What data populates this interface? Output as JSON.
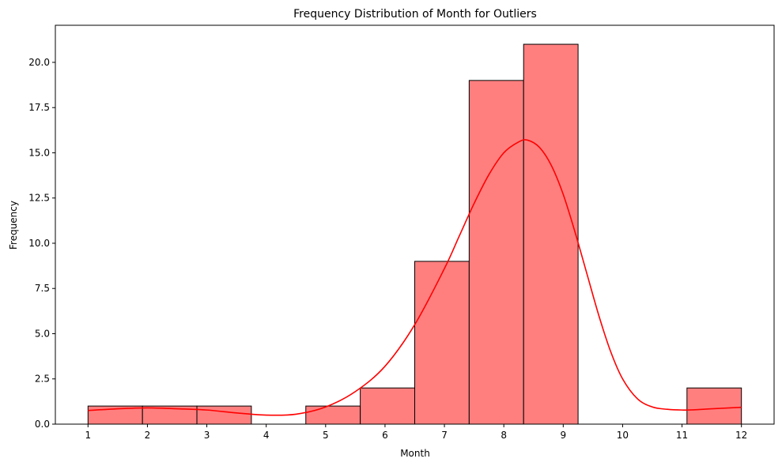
{
  "chart_data": {
    "type": "bar",
    "title": "Frequency Distribution of Month for Outliers",
    "xlabel": "Month",
    "ylabel": "Frequency",
    "xlim": [
      0.45,
      12.55
    ],
    "ylim": [
      0,
      22.05
    ],
    "bin_edges": [
      1.0,
      1.9167,
      2.8333,
      3.75,
      4.6667,
      5.5833,
      6.5,
      7.4167,
      8.3333,
      9.25,
      10.1667,
      11.0833,
      12.0
    ],
    "values": [
      1,
      1,
      1,
      0,
      1,
      2,
      9,
      19,
      21,
      0,
      0,
      2
    ],
    "kde": {
      "x": [
        1.0,
        1.5,
        2.0,
        2.5,
        3.0,
        3.5,
        4.0,
        4.5,
        5.0,
        5.5,
        6.0,
        6.5,
        7.0,
        7.25,
        7.5,
        7.75,
        8.0,
        8.25,
        8.4,
        8.6,
        8.8,
        9.0,
        9.2,
        9.4,
        9.6,
        9.8,
        10.0,
        10.25,
        10.5,
        10.75,
        11.0,
        11.25,
        11.5,
        12.0
      ],
      "y": [
        0.75,
        0.85,
        0.9,
        0.85,
        0.78,
        0.62,
        0.5,
        0.55,
        0.95,
        1.8,
        3.2,
        5.5,
        8.6,
        10.4,
        12.2,
        13.8,
        15.0,
        15.6,
        15.7,
        15.3,
        14.3,
        12.7,
        10.6,
        8.3,
        6.0,
        4.0,
        2.5,
        1.4,
        0.95,
        0.82,
        0.78,
        0.8,
        0.85,
        0.93
      ]
    },
    "xticks": [
      1,
      2,
      3,
      4,
      5,
      6,
      7,
      8,
      9,
      10,
      11,
      12
    ],
    "yticks": [
      0.0,
      2.5,
      5.0,
      7.5,
      10.0,
      12.5,
      15.0,
      17.5,
      20.0
    ],
    "ytick_labels": [
      "0.0",
      "2.5",
      "5.0",
      "7.5",
      "10.0",
      "12.5",
      "15.0",
      "17.5",
      "20.0"
    ],
    "colors": {
      "bar_fill": "#ff7f7f",
      "bar_edge": "#000000",
      "kde_line": "#ff0000"
    },
    "grid": false
  }
}
